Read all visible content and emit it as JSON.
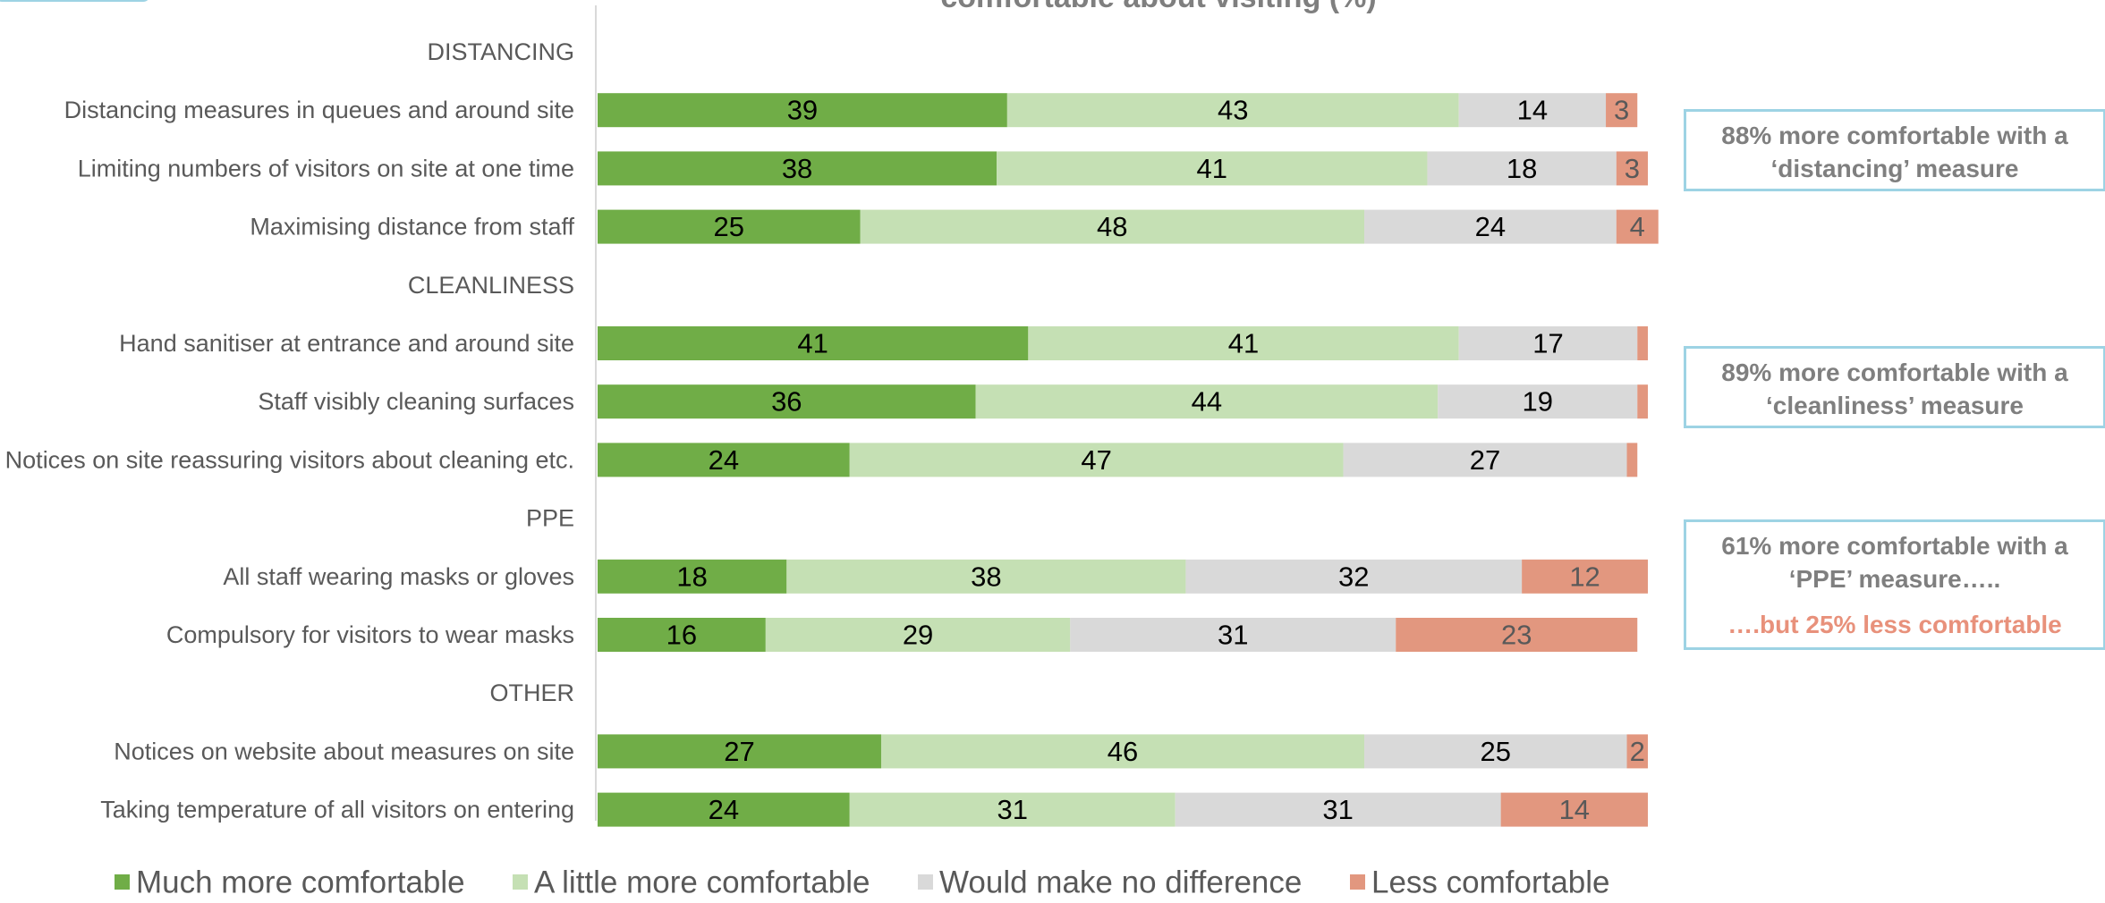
{
  "chart_data": {
    "type": "bar",
    "orientation": "horizontal",
    "stacked": true,
    "title": "comfortable about visiting (%)",
    "xlim": [
      0,
      100
    ],
    "grid": false,
    "legend_position": "bottom",
    "groups": [
      {
        "label": "DISTANCING",
        "items": [
          {
            "label": "Distancing measures in queues and around site",
            "values": [
              39,
              43,
              14,
              3
            ]
          },
          {
            "label": "Limiting numbers of visitors on site at one time",
            "values": [
              38,
              41,
              18,
              3
            ]
          },
          {
            "label": "Maximising distance from staff",
            "values": [
              25,
              48,
              24,
              4
            ]
          }
        ]
      },
      {
        "label": "CLEANLINESS",
        "items": [
          {
            "label": "Hand sanitiser at entrance and around site",
            "values": [
              41,
              41,
              17,
              1
            ]
          },
          {
            "label": "Staff visibly cleaning surfaces",
            "values": [
              36,
              44,
              19,
              1
            ]
          },
          {
            "label": "Notices on site reassuring visitors about cleaning etc.",
            "values": [
              24,
              47,
              27,
              1
            ]
          }
        ]
      },
      {
        "label": "PPE",
        "items": [
          {
            "label": "All staff wearing masks or gloves",
            "values": [
              18,
              38,
              32,
              12
            ]
          },
          {
            "label": "Compulsory for visitors to wear masks",
            "values": [
              16,
              29,
              31,
              23
            ]
          }
        ]
      },
      {
        "label": "OTHER",
        "items": [
          {
            "label": "Notices on website about measures on site",
            "values": [
              27,
              46,
              25,
              2
            ]
          },
          {
            "label": "Taking temperature of all visitors on entering",
            "values": [
              24,
              31,
              31,
              14
            ]
          }
        ]
      }
    ],
    "series": [
      {
        "name": "Much more comfortable",
        "color": "#70ad47"
      },
      {
        "name": "A little more comfortable",
        "color": "#c5e0b4"
      },
      {
        "name": "Would make no difference",
        "color": "#d9d9d9"
      },
      {
        "name": "Less comfortable",
        "color": "#e2977f"
      }
    ],
    "hidden_labels_below": 2
  },
  "callouts": {
    "distancing": "88% more comfortable with a ‘distancing’ measure",
    "cleanliness": "89% more comfortable with a ‘cleanliness’ measure",
    "ppe": "61% more comfortable with a ‘PPE’ measure…..",
    "ppe_negative": "….but 25% less comfortable"
  },
  "colors": {
    "callout_border": "#9dd3e4",
    "callout_text": "#7f7f7f",
    "callout_negative": "#e8917b"
  }
}
